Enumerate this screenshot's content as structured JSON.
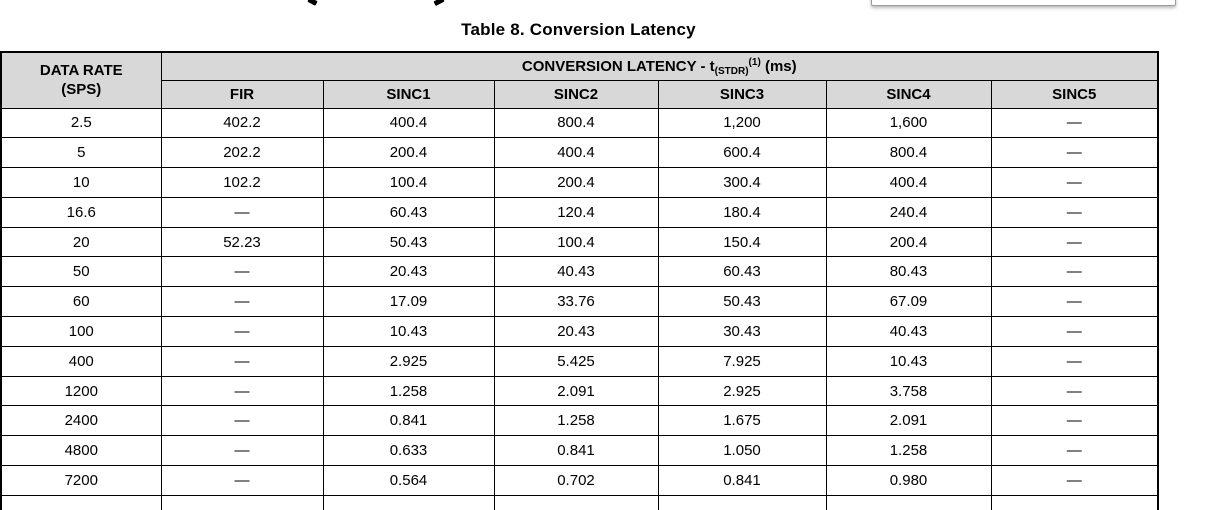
{
  "page": {
    "title": "Table 8. Conversion Latency"
  },
  "table": {
    "data_rate_header_line1": "DATA RATE",
    "data_rate_header_line2": "(SPS)",
    "latency_header": {
      "prefix": "CONVERSION LATENCY - t",
      "subscript": "(STDR)",
      "superscript": "(1)",
      "suffix": " (ms)"
    },
    "filter_columns": [
      "FIR",
      "SINC1",
      "SINC2",
      "SINC3",
      "SINC4",
      "SINC5"
    ],
    "empty_cell": "—",
    "rows": [
      {
        "data_rate": "2.5",
        "values": [
          "402.2",
          "400.4",
          "800.4",
          "1,200",
          "1,600",
          "—"
        ]
      },
      {
        "data_rate": "5",
        "values": [
          "202.2",
          "200.4",
          "400.4",
          "600.4",
          "800.4",
          "—"
        ]
      },
      {
        "data_rate": "10",
        "values": [
          "102.2",
          "100.4",
          "200.4",
          "300.4",
          "400.4",
          "—"
        ]
      },
      {
        "data_rate": "16.6",
        "values": [
          "—",
          "60.43",
          "120.4",
          "180.4",
          "240.4",
          "—"
        ]
      },
      {
        "data_rate": "20",
        "values": [
          "52.23",
          "50.43",
          "100.4",
          "150.4",
          "200.4",
          "—"
        ]
      },
      {
        "data_rate": "50",
        "values": [
          "—",
          "20.43",
          "40.43",
          "60.43",
          "80.43",
          "—"
        ]
      },
      {
        "data_rate": "60",
        "values": [
          "—",
          "17.09",
          "33.76",
          "50.43",
          "67.09",
          "—"
        ]
      },
      {
        "data_rate": "100",
        "values": [
          "—",
          "10.43",
          "20.43",
          "30.43",
          "40.43",
          "—"
        ]
      },
      {
        "data_rate": "400",
        "values": [
          "—",
          "2.925",
          "5.425",
          "7.925",
          "10.43",
          "—"
        ]
      },
      {
        "data_rate": "1200",
        "values": [
          "—",
          "1.258",
          "2.091",
          "2.925",
          "3.758",
          "—"
        ]
      },
      {
        "data_rate": "2400",
        "values": [
          "—",
          "0.841",
          "1.258",
          "1.675",
          "2.091",
          "—"
        ]
      },
      {
        "data_rate": "4800",
        "values": [
          "—",
          "0.633",
          "0.841",
          "1.050",
          "1.258",
          "—"
        ]
      },
      {
        "data_rate": "7200",
        "values": [
          "—",
          "0.564",
          "0.702",
          "0.841",
          "0.980",
          "—"
        ]
      }
    ]
  },
  "colors": {
    "header_background": "#d8d8d8",
    "table_border": "#000000",
    "text": "#000000",
    "cutoff_box_border": "#9c9c9c"
  }
}
